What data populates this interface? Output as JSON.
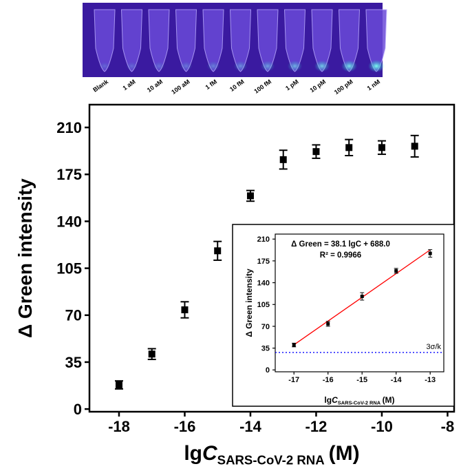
{
  "photo": {
    "labels": [
      "Blank",
      "1 aM",
      "10 aM",
      "100 aM",
      "1 fM",
      "10 fM",
      "100 fM",
      "1 pM",
      "10 pM",
      "100 pM",
      "1 nM"
    ]
  },
  "chart_data": [
    {
      "type": "scatter",
      "ylabel": "Δ Green intensity",
      "xlabel": {
        "prefix": "lg",
        "variable": "C",
        "subscript": "SARS-CoV-2 RNA",
        "suffix": "(M)"
      },
      "x": [
        -18,
        -17,
        -16,
        -15,
        -14,
        -13,
        -12,
        -11,
        -10,
        -9
      ],
      "values": [
        18,
        41,
        74,
        118,
        159,
        186,
        192,
        195,
        195,
        196
      ],
      "errors": [
        3,
        4,
        6,
        7,
        4,
        7,
        5,
        6,
        5,
        8
      ],
      "color": "#000000",
      "xlim": [
        -18.9,
        -7.8
      ],
      "ylim": [
        -2,
        227
      ],
      "xticks": [
        -18,
        -16,
        -14,
        -12,
        -10,
        -8
      ],
      "yticks": [
        0,
        35,
        70,
        105,
        140,
        175,
        210
      ]
    },
    {
      "type": "scatter",
      "ylabel": "Δ Green intensity",
      "xlabel": {
        "prefix": "lg",
        "variable": "C",
        "subscript": "SARS-CoV-2 RNA",
        "suffix": "(M)"
      },
      "x": [
        -17,
        -16,
        -15,
        -14,
        -13
      ],
      "values": [
        40,
        74,
        118,
        159,
        187
      ],
      "errors": [
        3,
        4,
        6,
        4,
        6
      ],
      "color": "#000000",
      "fit": {
        "equation": "Δ Green = 38.1 lgC + 688.0",
        "r2_label": "R² = 0.9966",
        "slope": 38.1,
        "intercept": 688.0,
        "color": "#ff0000"
      },
      "threshold": {
        "value": 28,
        "label": "3σ/k",
        "color": "#0000ff"
      },
      "xlim": [
        -17.55,
        -12.6
      ],
      "ylim": [
        -3,
        218
      ],
      "xticks": [
        -17,
        -16,
        -15,
        -14,
        -13
      ],
      "yticks": [
        0,
        35,
        70,
        105,
        140,
        175,
        210
      ]
    }
  ]
}
